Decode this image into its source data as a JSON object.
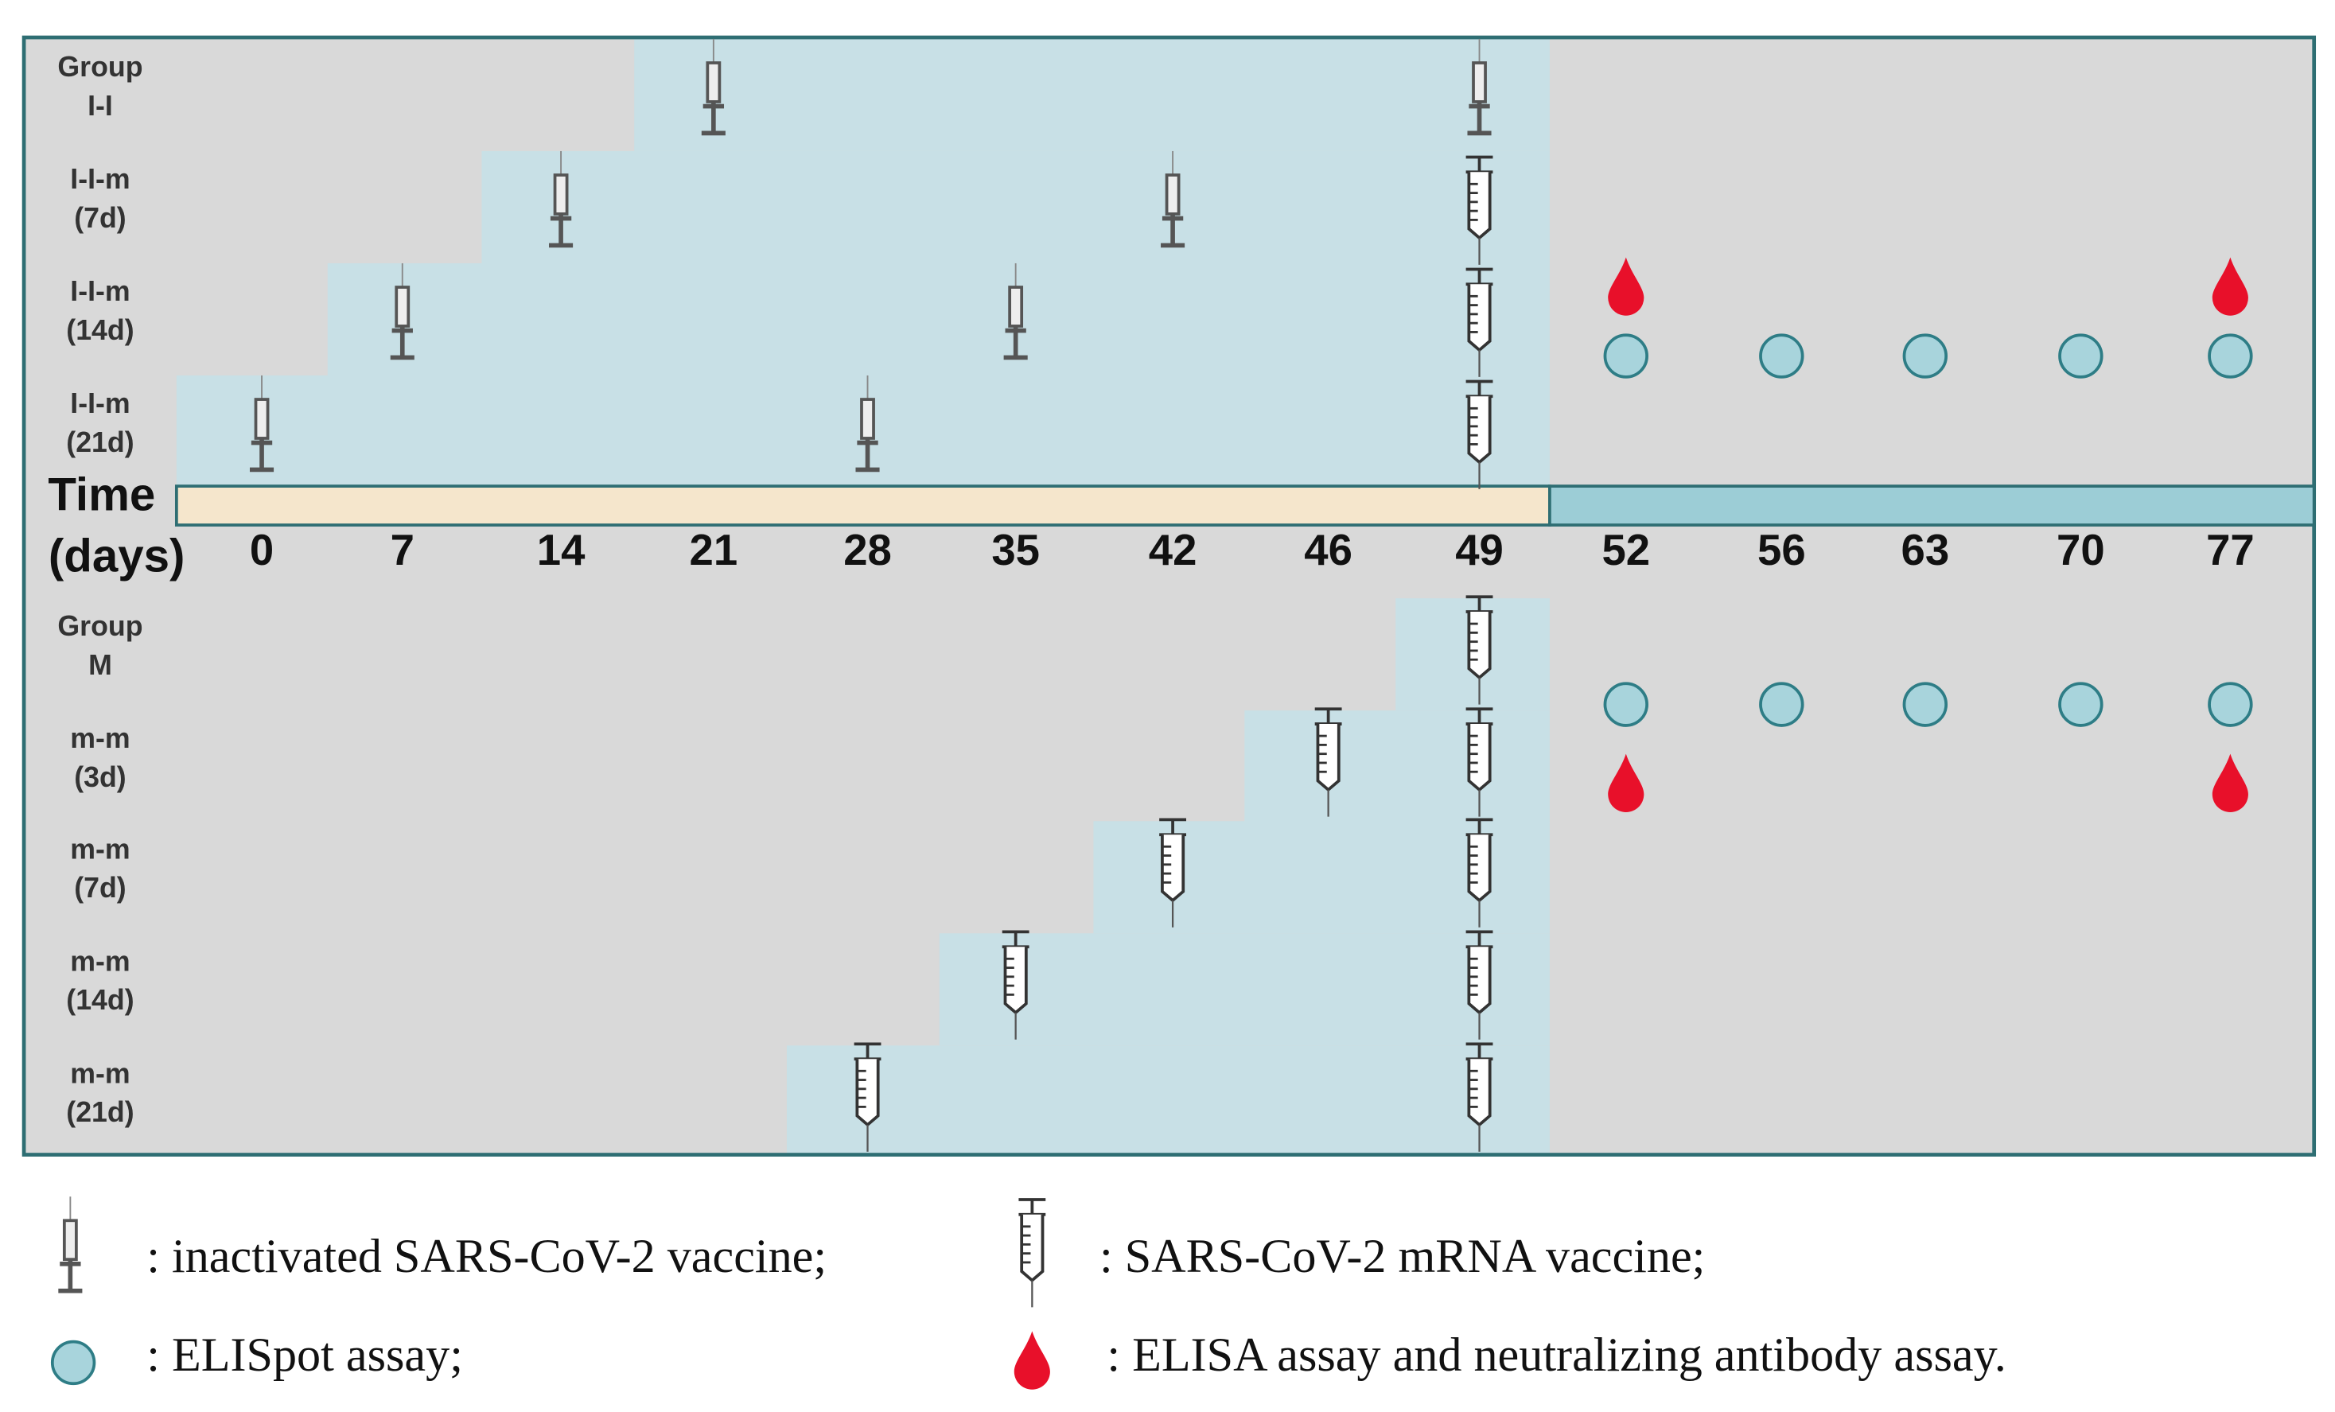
{
  "top_groups": [
    [
      "Group",
      "I-I"
    ],
    [
      "I-I-m",
      "(7d)"
    ],
    [
      "I-I-m",
      "(14d)"
    ],
    [
      "I-I-m",
      "(21d)"
    ]
  ],
  "time_axis": {
    "title": [
      "Time",
      "(days)"
    ],
    "ticks": [
      0,
      7,
      14,
      21,
      28,
      35,
      42,
      46,
      49,
      52,
      56,
      63,
      70,
      77
    ]
  },
  "bottom_groups": [
    [
      "Group",
      "M"
    ],
    [
      "m-m",
      "(3d)"
    ],
    [
      "m-m",
      "(7d)"
    ],
    [
      "m-m",
      "(14d)"
    ],
    [
      "m-m",
      "(21d)"
    ]
  ],
  "legend": {
    "inactivated": ": inactivated SARS-CoV-2 vaccine;",
    "mrna": ": SARS-CoV-2 mRNA vaccine;",
    "elispot": ": ELISpot assay;",
    "elisa": ": ELISA assay and neutralizing antibody assay."
  }
}
